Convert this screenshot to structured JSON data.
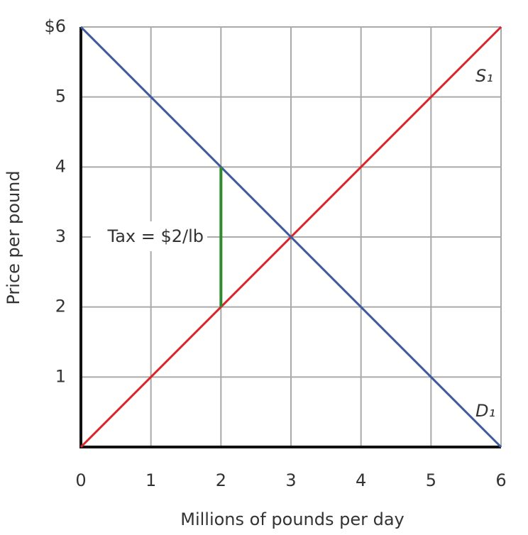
{
  "chart_data": {
    "type": "line",
    "xlabel": "Millions of pounds per day",
    "ylabel": "Price per pound",
    "xlim": [
      0,
      6
    ],
    "ylim": [
      0,
      6
    ],
    "xticks": [
      0,
      1,
      2,
      3,
      4,
      5,
      6
    ],
    "yticks": [
      1,
      2,
      3,
      4,
      5,
      {
        "value": 6,
        "label": "$6"
      }
    ],
    "grid": true,
    "series": [
      {
        "name": "S₁",
        "color": "#d7262b",
        "x": [
          0,
          6
        ],
        "values": [
          0,
          6
        ]
      },
      {
        "name": "D₁",
        "color": "#3f5a9c",
        "x": [
          0,
          6
        ],
        "values": [
          6,
          0
        ]
      }
    ],
    "annotations": [
      {
        "text": "Tax = $2/lb",
        "x": 2,
        "y": [
          2,
          4
        ],
        "color": "#2e8b2e"
      }
    ]
  }
}
